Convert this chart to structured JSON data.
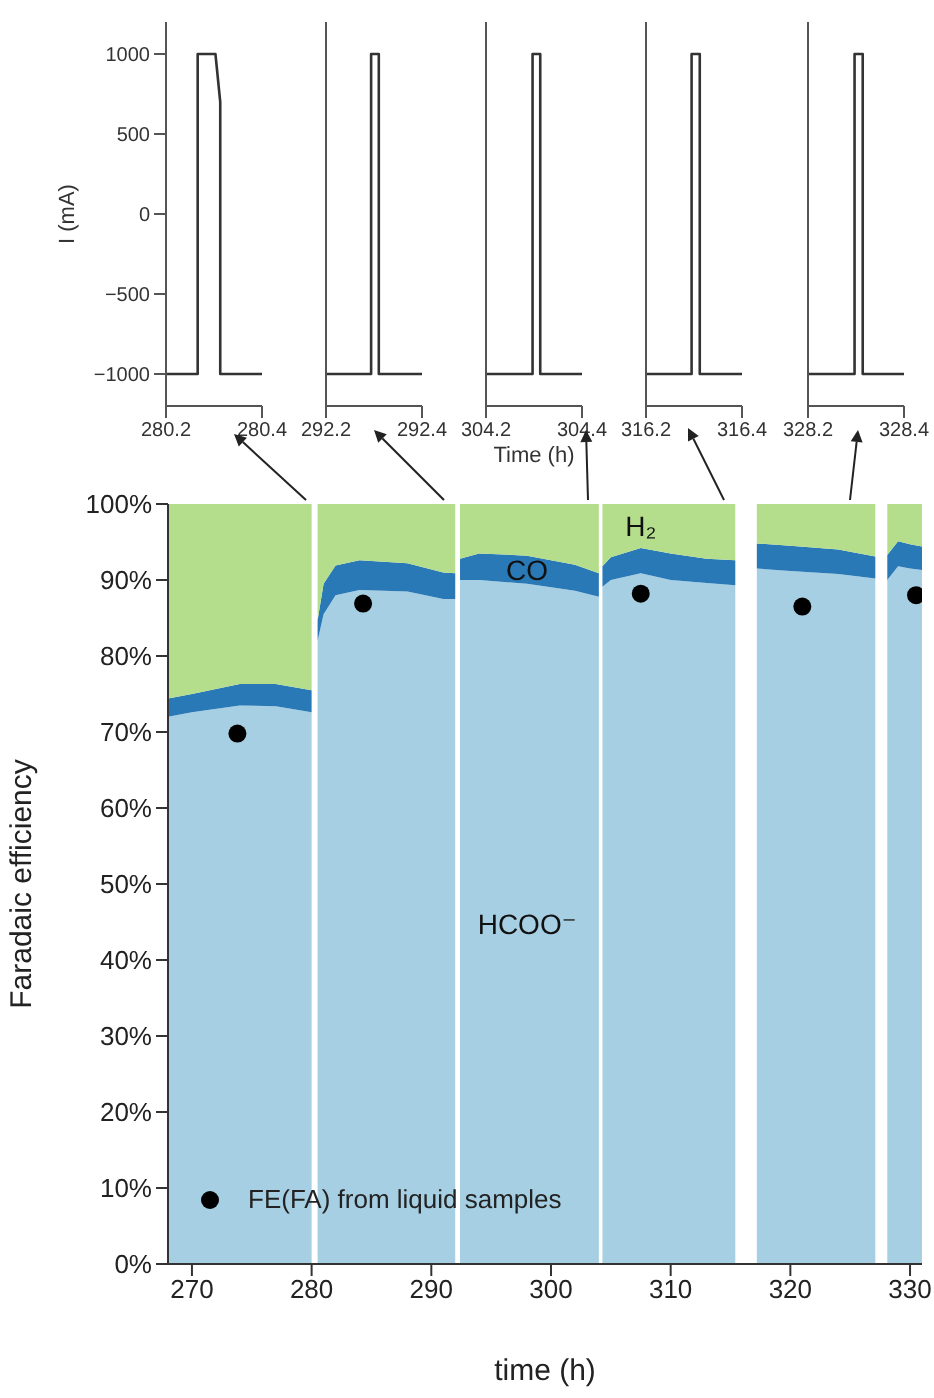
{
  "chart_data": [
    {
      "type": "line",
      "ylabel": "I (mA)",
      "xlim": [
        280.2,
        280.4
      ],
      "xticks": [
        280.2,
        280.4
      ],
      "ylim": [
        -1200,
        1200
      ],
      "yticks": [
        {
          "value": -1000,
          "label": "−1000"
        },
        {
          "value": -500,
          "label": "−500"
        },
        0,
        500,
        1000
      ],
      "grid": false,
      "legend": false,
      "marker": "none",
      "series": [
        {
          "color": "#333333",
          "x": [
            280.2,
            280.266,
            280.266,
            280.303,
            280.313,
            280.313,
            280.4
          ],
          "values": [
            -1000,
            -1000,
            1000,
            1000,
            700,
            -1000,
            -1000
          ]
        }
      ]
    },
    {
      "type": "line",
      "xlim": [
        292.2,
        292.4
      ],
      "xticks": [
        292.2,
        292.4
      ],
      "ylim": [
        -1200,
        1200
      ],
      "tick_labels": "x",
      "grid": false,
      "legend": false,
      "marker": "none",
      "series": [
        {
          "color": "#333333",
          "x": [
            292.2,
            292.294,
            292.294,
            292.31,
            292.31,
            292.4
          ],
          "values": [
            -1000,
            -1000,
            1000,
            1000,
            -1000,
            -1000
          ]
        }
      ]
    },
    {
      "type": "line",
      "xlabel": "Time (h)",
      "xlim": [
        304.2,
        304.4
      ],
      "xticks": [
        304.2,
        304.4
      ],
      "ylim": [
        -1200,
        1200
      ],
      "tick_labels": "x",
      "grid": false,
      "legend": false,
      "marker": "none",
      "series": [
        {
          "color": "#333333",
          "x": [
            304.2,
            304.297,
            304.297,
            304.313,
            304.313,
            304.4
          ],
          "values": [
            -1000,
            -1000,
            1000,
            1000,
            -1000,
            -1000
          ]
        }
      ]
    },
    {
      "type": "line",
      "xlim": [
        316.2,
        316.4
      ],
      "xticks": [
        316.2,
        316.4
      ],
      "ylim": [
        -1200,
        1200
      ],
      "tick_labels": "x",
      "grid": false,
      "legend": false,
      "marker": "none",
      "series": [
        {
          "color": "#333333",
          "x": [
            316.2,
            316.295,
            316.295,
            316.312,
            316.312,
            316.4
          ],
          "values": [
            -1000,
            -1000,
            1000,
            1000,
            -1000,
            -1000
          ]
        }
      ]
    },
    {
      "type": "line",
      "xlim": [
        328.2,
        328.4
      ],
      "xticks": [
        328.2,
        328.4
      ],
      "ylim": [
        -1200,
        1200
      ],
      "tick_labels": "x",
      "grid": false,
      "legend": false,
      "marker": "none",
      "series": [
        {
          "color": "#333333",
          "x": [
            328.2,
            328.297,
            328.297,
            328.314,
            328.314,
            328.4
          ],
          "values": [
            -1000,
            -1000,
            1000,
            1000,
            -1000,
            -1000
          ]
        }
      ]
    },
    {
      "type": "area",
      "stacked": true,
      "xlabel": "time (h)",
      "ylabel": "Faradaic efficiency",
      "xlim": [
        268,
        331
      ],
      "xticks": [
        270,
        280,
        290,
        300,
        310,
        320,
        330
      ],
      "ylim": [
        0,
        100
      ],
      "yticks": [
        {
          "value": 0,
          "label": "0%"
        },
        {
          "value": 10,
          "label": "10%"
        },
        {
          "value": 20,
          "label": "20%"
        },
        {
          "value": 30,
          "label": "30%"
        },
        {
          "value": 40,
          "label": "40%"
        },
        {
          "value": 50,
          "label": "50%"
        },
        {
          "value": 60,
          "label": "60%"
        },
        {
          "value": 70,
          "label": "70%"
        },
        {
          "value": 80,
          "label": "80%"
        },
        {
          "value": 90,
          "label": "90%"
        },
        {
          "value": 100,
          "label": "100%"
        }
      ],
      "grid": false,
      "legend": "bottom left",
      "x": [
        268,
        270,
        274,
        277,
        280,
        280.3,
        280.5,
        281,
        282,
        284,
        288,
        291,
        292,
        292.2,
        292.4,
        294,
        298,
        302,
        304,
        304.15,
        304.3,
        305,
        307.5,
        310,
        313,
        315.4,
        316.3,
        317.2,
        320,
        324,
        327.1,
        327.6,
        328.1,
        329,
        330,
        331
      ],
      "series": [
        {
          "name": "HCOO⁻",
          "color": "#a6cfe3",
          "values": [
            72.0,
            72.6,
            73.5,
            73.4,
            72.6,
            null,
            82.0,
            85.5,
            88.0,
            88.7,
            88.5,
            87.5,
            87.5,
            null,
            90.0,
            90.0,
            89.5,
            88.6,
            87.8,
            null,
            89.1,
            90.0,
            90.9,
            90.0,
            89.6,
            89.3,
            null,
            91.5,
            91.2,
            90.8,
            90.2,
            null,
            90.0,
            91.8,
            91.5,
            91.3
          ]
        },
        {
          "name": "CO",
          "color": "#2a79b7",
          "values": [
            2.4,
            2.4,
            2.8,
            2.9,
            2.9,
            null,
            2.7,
            4.0,
            3.9,
            3.9,
            3.7,
            3.5,
            3.4,
            null,
            2.8,
            3.5,
            3.7,
            3.4,
            3.1,
            null,
            2.7,
            3.0,
            3.3,
            3.5,
            3.2,
            3.3,
            null,
            3.3,
            3.3,
            3.2,
            2.9,
            null,
            3.3,
            3.3,
            3.2,
            3.1
          ]
        },
        {
          "name": "H₂",
          "color": "#b4dd8c",
          "values": [
            25.6,
            25.0,
            23.7,
            23.7,
            24.5,
            null,
            15.3,
            10.5,
            8.1,
            7.4,
            7.8,
            9.0,
            9.1,
            null,
            7.2,
            6.5,
            6.8,
            8.0,
            9.1,
            null,
            8.2,
            7.0,
            5.8,
            6.5,
            7.2,
            7.4,
            null,
            5.2,
            5.5,
            6.0,
            6.9,
            null,
            6.7,
            4.9,
            5.3,
            5.6
          ]
        },
        {
          "name": "FE(FA) from liquid samples",
          "type": "scatter",
          "marker": "circle",
          "color": "#000000",
          "x": [
            273.8,
            284.3,
            307.5,
            321.0,
            330.5
          ],
          "values": [
            69.8,
            86.9,
            88.2,
            86.5,
            88.0
          ]
        }
      ]
    }
  ]
}
